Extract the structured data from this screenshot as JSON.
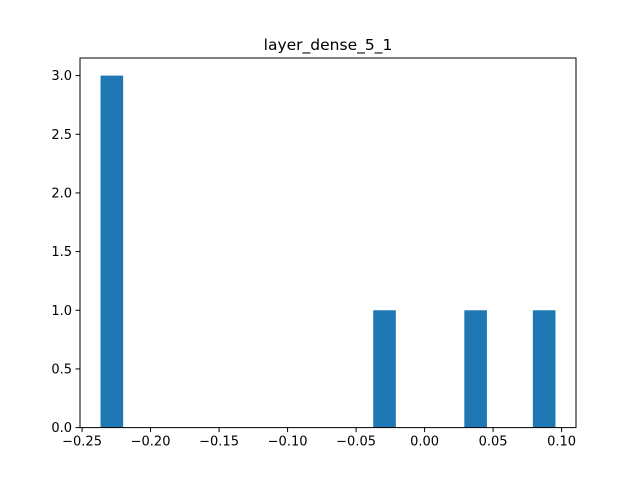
{
  "chart_data": {
    "type": "bar",
    "title": "layer_dense_5_1",
    "xlabel": "",
    "ylabel": "",
    "bar_color": "#1f77b4",
    "bins": [
      {
        "x0": -0.2365,
        "x1": -0.22,
        "count": 3
      },
      {
        "x0": -0.0375,
        "x1": -0.021,
        "count": 1
      },
      {
        "x0": 0.029,
        "x1": 0.0455,
        "count": 1
      },
      {
        "x0": 0.079,
        "x1": 0.0955,
        "count": 1
      }
    ],
    "xlim": [
      -0.2515,
      0.1105
    ],
    "ylim": [
      0,
      3.15
    ],
    "x_ticks": [
      {
        "value": -0.25,
        "label": "−0.25"
      },
      {
        "value": -0.2,
        "label": "−0.20"
      },
      {
        "value": -0.15,
        "label": "−0.15"
      },
      {
        "value": -0.1,
        "label": "−0.10"
      },
      {
        "value": -0.05,
        "label": "−0.05"
      },
      {
        "value": 0.0,
        "label": "0.00"
      },
      {
        "value": 0.05,
        "label": "0.05"
      },
      {
        "value": 0.1,
        "label": "0.10"
      }
    ],
    "y_ticks": [
      {
        "value": 0.0,
        "label": "0.0"
      },
      {
        "value": 0.5,
        "label": "0.5"
      },
      {
        "value": 1.0,
        "label": "1.0"
      },
      {
        "value": 1.5,
        "label": "1.5"
      },
      {
        "value": 2.0,
        "label": "2.0"
      },
      {
        "value": 2.5,
        "label": "2.5"
      },
      {
        "value": 3.0,
        "label": "3.0"
      }
    ],
    "grid": false,
    "legend": "none"
  }
}
